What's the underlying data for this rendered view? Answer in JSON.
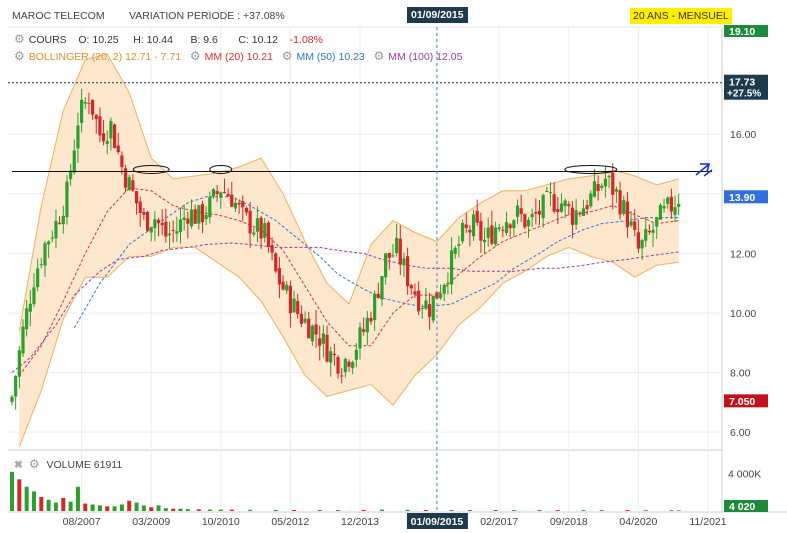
{
  "header": {
    "instrument": "MAROC TELECOM",
    "variation_label": "VARIATION PERIODE : +37.08%",
    "period_badge": "20 ANS - MENSUEL",
    "cursor_date": "01/09/2015"
  },
  "legend": {
    "cours": {
      "label": "COURS",
      "o": "O: 10.25",
      "h": "H: 10.44",
      "b": "B: 9.6",
      "c": "C: 10.12",
      "chg": "-1.08%"
    },
    "bollinger": {
      "label": "BOLLINGER (20, 2)",
      "values": "12.71 - 7.71",
      "color": "#f0a030"
    },
    "mm20": {
      "label": "MM (20)",
      "value": "10.21",
      "color": "#e03030"
    },
    "mm50": {
      "label": "MM (50)",
      "value": "10.23",
      "color": "#2a7ad0"
    },
    "mm100": {
      "label": "MM (100)",
      "value": "12.05",
      "color": "#9a3aa8"
    }
  },
  "volume": {
    "label": "VOLUME",
    "value": "61911"
  },
  "price_tags": {
    "top": "19.10",
    "dashed": "17.73",
    "dashed_pct": "+27.5%",
    "last": "13.90",
    "low": "7.050",
    "volume_axis": "4 000K",
    "volume_last": "4 020"
  },
  "colors": {
    "up": "#2ca02c",
    "down": "#d62728",
    "band_fill": "#fde3c4",
    "band_line": "#f2b060",
    "last_tag": "#2f6fe0",
    "low_tag": "#c0121d",
    "dark_tag": "#1d3b4d",
    "top_tag": "#1e8a3c"
  },
  "chart_data": {
    "type": "candlestick",
    "y_ticks": [
      "6.00",
      "8.00",
      "10.00",
      "12.00",
      "14.00",
      "16.00"
    ],
    "ylim": [
      5.4,
      19.6
    ],
    "x_ticks": [
      "08/2007",
      "03/2009",
      "10/2010",
      "05/2012",
      "12/2013",
      "01/09/2015",
      "02/2017",
      "09/2018",
      "04/2020",
      "11/2021"
    ],
    "xlim": [
      "2006-01",
      "2021-11"
    ],
    "resistance_level": 14.75,
    "cursor": "2015-09",
    "close_series": [
      [
        "2006-01",
        7.2
      ],
      [
        "2006-04",
        9.4
      ],
      [
        "2006-07",
        11.2
      ],
      [
        "2006-10",
        12.3
      ],
      [
        "2007-01",
        13.0
      ],
      [
        "2007-04",
        14.0
      ],
      [
        "2007-07",
        16.5
      ],
      [
        "2007-10",
        17.3
      ],
      [
        "2008-01",
        16.0
      ],
      [
        "2008-04",
        16.3
      ],
      [
        "2008-07",
        14.9
      ],
      [
        "2008-10",
        14.0
      ],
      [
        "2009-01",
        13.1
      ],
      [
        "2009-04",
        13.2
      ],
      [
        "2009-07",
        12.6
      ],
      [
        "2009-10",
        12.8
      ],
      [
        "2010-01",
        13.4
      ],
      [
        "2010-04",
        13.2
      ],
      [
        "2010-07",
        13.6
      ],
      [
        "2010-10",
        14.2
      ],
      [
        "2011-01",
        13.9
      ],
      [
        "2011-04",
        13.2
      ],
      [
        "2011-07",
        12.9
      ],
      [
        "2011-10",
        12.6
      ],
      [
        "2012-01",
        11.3
      ],
      [
        "2012-04",
        10.6
      ],
      [
        "2012-07",
        10.0
      ],
      [
        "2012-10",
        9.6
      ],
      [
        "2013-01",
        9.2
      ],
      [
        "2013-04",
        8.6
      ],
      [
        "2013-07",
        8.3
      ],
      [
        "2013-10",
        8.7
      ],
      [
        "2014-01",
        9.4
      ],
      [
        "2014-04",
        10.4
      ],
      [
        "2014-07",
        11.8
      ],
      [
        "2014-10",
        12.1
      ],
      [
        "2015-01",
        11.2
      ],
      [
        "2015-04",
        10.5
      ],
      [
        "2015-07",
        10.2
      ],
      [
        "2015-10",
        10.9
      ],
      [
        "2016-01",
        11.7
      ],
      [
        "2016-04",
        12.6
      ],
      [
        "2016-07",
        12.9
      ],
      [
        "2016-10",
        12.4
      ],
      [
        "2017-01",
        12.9
      ],
      [
        "2017-04",
        13.2
      ],
      [
        "2017-07",
        13.3
      ],
      [
        "2017-10",
        13.0
      ],
      [
        "2018-01",
        13.4
      ],
      [
        "2018-04",
        13.8
      ],
      [
        "2018-07",
        13.7
      ],
      [
        "2018-10",
        13.3
      ],
      [
        "2019-01",
        13.6
      ],
      [
        "2019-04",
        14.0
      ],
      [
        "2019-07",
        14.5
      ],
      [
        "2019-10",
        14.0
      ],
      [
        "2020-01",
        13.2
      ],
      [
        "2020-04",
        12.1
      ],
      [
        "2020-07",
        12.6
      ],
      [
        "2020-10",
        13.2
      ],
      [
        "2021-01",
        13.6
      ],
      [
        "2021-03",
        13.9
      ]
    ],
    "bollinger_upper": [
      [
        "2006-03",
        9.4
      ],
      [
        "2006-09",
        13.6
      ],
      [
        "2007-03",
        16.8
      ],
      [
        "2007-09",
        18.5
      ],
      [
        "2008-03",
        18.7
      ],
      [
        "2008-09",
        17.4
      ],
      [
        "2009-03",
        15.2
      ],
      [
        "2009-09",
        14.5
      ],
      [
        "2010-03",
        14.6
      ],
      [
        "2010-09",
        14.7
      ],
      [
        "2011-03",
        14.9
      ],
      [
        "2011-09",
        15.2
      ],
      [
        "2012-03",
        14.0
      ],
      [
        "2012-09",
        12.4
      ],
      [
        "2013-03",
        11.0
      ],
      [
        "2013-09",
        10.3
      ],
      [
        "2014-03",
        12.3
      ],
      [
        "2014-09",
        13.1
      ],
      [
        "2015-03",
        12.7
      ],
      [
        "2015-09",
        12.4
      ],
      [
        "2016-03",
        13.2
      ],
      [
        "2016-09",
        13.7
      ],
      [
        "2017-03",
        14.1
      ],
      [
        "2017-09",
        14.1
      ],
      [
        "2018-03",
        14.3
      ],
      [
        "2018-09",
        14.5
      ],
      [
        "2019-03",
        14.6
      ],
      [
        "2019-09",
        14.8
      ],
      [
        "2020-03",
        14.6
      ],
      [
        "2020-09",
        14.3
      ],
      [
        "2021-03",
        14.5
      ]
    ],
    "bollinger_lower": [
      [
        "2006-03",
        5.5
      ],
      [
        "2006-09",
        7.4
      ],
      [
        "2007-03",
        9.8
      ],
      [
        "2007-09",
        11.2
      ],
      [
        "2008-03",
        11.2
      ],
      [
        "2008-09",
        11.9
      ],
      [
        "2009-03",
        11.9
      ],
      [
        "2009-09",
        12.2
      ],
      [
        "2010-03",
        12.2
      ],
      [
        "2010-09",
        11.7
      ],
      [
        "2011-03",
        11.2
      ],
      [
        "2011-09",
        10.4
      ],
      [
        "2012-03",
        9.2
      ],
      [
        "2012-09",
        7.9
      ],
      [
        "2013-03",
        7.2
      ],
      [
        "2013-09",
        7.4
      ],
      [
        "2014-03",
        7.6
      ],
      [
        "2014-09",
        6.9
      ],
      [
        "2015-03",
        7.9
      ],
      [
        "2015-09",
        8.6
      ],
      [
        "2016-03",
        9.6
      ],
      [
        "2016-09",
        10.2
      ],
      [
        "2017-03",
        11.0
      ],
      [
        "2017-09",
        11.4
      ],
      [
        "2018-03",
        11.9
      ],
      [
        "2018-09",
        12.2
      ],
      [
        "2019-03",
        11.9
      ],
      [
        "2019-09",
        11.7
      ],
      [
        "2020-03",
        11.2
      ],
      [
        "2020-09",
        11.6
      ],
      [
        "2021-03",
        11.7
      ]
    ],
    "mm20": [
      [
        "2006-03",
        7.9
      ],
      [
        "2006-09",
        8.9
      ],
      [
        "2007-03",
        10.4
      ],
      [
        "2007-09",
        12.0
      ],
      [
        "2008-03",
        13.4
      ],
      [
        "2008-09",
        14.2
      ],
      [
        "2009-03",
        14.1
      ],
      [
        "2009-09",
        13.6
      ],
      [
        "2010-03",
        13.4
      ],
      [
        "2010-09",
        13.3
      ],
      [
        "2011-03",
        13.1
      ],
      [
        "2011-09",
        12.8
      ],
      [
        "2012-03",
        12.1
      ],
      [
        "2012-09",
        10.9
      ],
      [
        "2013-03",
        9.7
      ],
      [
        "2013-09",
        8.9
      ],
      [
        "2014-03",
        8.9
      ],
      [
        "2014-09",
        10.0
      ],
      [
        "2015-03",
        10.6
      ],
      [
        "2015-09",
        10.6
      ],
      [
        "2016-03",
        11.3
      ],
      [
        "2016-09",
        11.9
      ],
      [
        "2017-03",
        12.4
      ],
      [
        "2017-09",
        12.7
      ],
      [
        "2018-03",
        13.0
      ],
      [
        "2018-09",
        13.3
      ],
      [
        "2019-03",
        13.4
      ],
      [
        "2019-09",
        13.6
      ],
      [
        "2020-03",
        13.3
      ],
      [
        "2020-09",
        13.0
      ],
      [
        "2021-03",
        13.1
      ]
    ],
    "mm50": [
      [
        "2007-06",
        9.5
      ],
      [
        "2008-01",
        11.0
      ],
      [
        "2008-09",
        12.3
      ],
      [
        "2009-06",
        13.1
      ],
      [
        "2010-01",
        13.7
      ],
      [
        "2010-06",
        13.9
      ],
      [
        "2011-01",
        13.9
      ],
      [
        "2011-06",
        13.6
      ],
      [
        "2012-01",
        13.1
      ],
      [
        "2012-06",
        12.6
      ],
      [
        "2013-01",
        11.9
      ],
      [
        "2013-06",
        11.3
      ],
      [
        "2014-01",
        10.8
      ],
      [
        "2014-06",
        10.5
      ],
      [
        "2015-01",
        10.3
      ],
      [
        "2015-06",
        10.2
      ],
      [
        "2016-01",
        10.3
      ],
      [
        "2016-06",
        10.6
      ],
      [
        "2017-01",
        11.0
      ],
      [
        "2017-06",
        11.5
      ],
      [
        "2018-01",
        12.0
      ],
      [
        "2018-06",
        12.4
      ],
      [
        "2019-01",
        12.8
      ],
      [
        "2019-06",
        13.0
      ],
      [
        "2020-01",
        13.1
      ],
      [
        "2020-06",
        13.2
      ],
      [
        "2021-03",
        13.2
      ]
    ],
    "mm100": [
      [
        "2006-01",
        8.0
      ],
      [
        "2006-06",
        8.5
      ],
      [
        "2007-01",
        9.6
      ],
      [
        "2007-06",
        10.6
      ],
      [
        "2008-01",
        11.4
      ],
      [
        "2008-06",
        11.8
      ],
      [
        "2009-01",
        11.9
      ],
      [
        "2009-06",
        12.1
      ],
      [
        "2010-01",
        12.2
      ],
      [
        "2010-06",
        12.3
      ],
      [
        "2011-01",
        12.35
      ],
      [
        "2011-06",
        12.3
      ],
      [
        "2012-01",
        12.2
      ],
      [
        "2012-06",
        12.2
      ],
      [
        "2013-01",
        12.2
      ],
      [
        "2013-06",
        12.1
      ],
      [
        "2014-01",
        12.0
      ],
      [
        "2014-06",
        11.8
      ],
      [
        "2015-01",
        11.6
      ],
      [
        "2015-06",
        11.5
      ],
      [
        "2016-01",
        11.5
      ],
      [
        "2016-06",
        11.4
      ],
      [
        "2017-01",
        11.4
      ],
      [
        "2017-06",
        11.4
      ],
      [
        "2018-01",
        11.5
      ],
      [
        "2018-06",
        11.5
      ],
      [
        "2019-01",
        11.6
      ],
      [
        "2019-06",
        11.7
      ],
      [
        "2020-01",
        11.8
      ],
      [
        "2020-06",
        11.9
      ],
      [
        "2021-03",
        12.05
      ]
    ],
    "volume_bars": [
      [
        "2006-01",
        4200
      ],
      [
        "2006-03",
        3400
      ],
      [
        "2006-05",
        2600
      ],
      [
        "2006-07",
        2100
      ],
      [
        "2006-09",
        1500
      ],
      [
        "2006-11",
        1200
      ],
      [
        "2007-01",
        900
      ],
      [
        "2007-03",
        1400
      ],
      [
        "2007-05",
        1000
      ],
      [
        "2007-07",
        2600
      ],
      [
        "2007-09",
        800
      ],
      [
        "2007-11",
        700
      ],
      [
        "2008-01",
        600
      ],
      [
        "2008-03",
        500
      ],
      [
        "2008-05",
        500
      ],
      [
        "2008-07",
        700
      ],
      [
        "2008-09",
        1100
      ],
      [
        "2008-11",
        900
      ],
      [
        "2009-01",
        600
      ],
      [
        "2009-03",
        400
      ],
      [
        "2009-05",
        600
      ],
      [
        "2009-07",
        300
      ],
      [
        "2009-09",
        250
      ],
      [
        "2009-11",
        250
      ],
      [
        "2010-01",
        200
      ],
      [
        "2010-04",
        180
      ],
      [
        "2010-07",
        160
      ],
      [
        "2010-10",
        150
      ],
      [
        "2011-01",
        150
      ],
      [
        "2011-06",
        130
      ],
      [
        "2012-01",
        120
      ],
      [
        "2012-06",
        110
      ],
      [
        "2013-01",
        110
      ],
      [
        "2013-06",
        100
      ],
      [
        "2014-01",
        120
      ],
      [
        "2014-06",
        150
      ],
      [
        "2015-01",
        130
      ],
      [
        "2015-06",
        110
      ],
      [
        "2016-01",
        100
      ],
      [
        "2016-06",
        110
      ],
      [
        "2017-01",
        100
      ],
      [
        "2017-06",
        100
      ],
      [
        "2018-01",
        100
      ],
      [
        "2018-06",
        90
      ],
      [
        "2019-01",
        90
      ],
      [
        "2019-06",
        100
      ],
      [
        "2020-01",
        100
      ],
      [
        "2020-06",
        90
      ],
      [
        "2021-01",
        80
      ],
      [
        "2021-03",
        61.9
      ]
    ]
  }
}
